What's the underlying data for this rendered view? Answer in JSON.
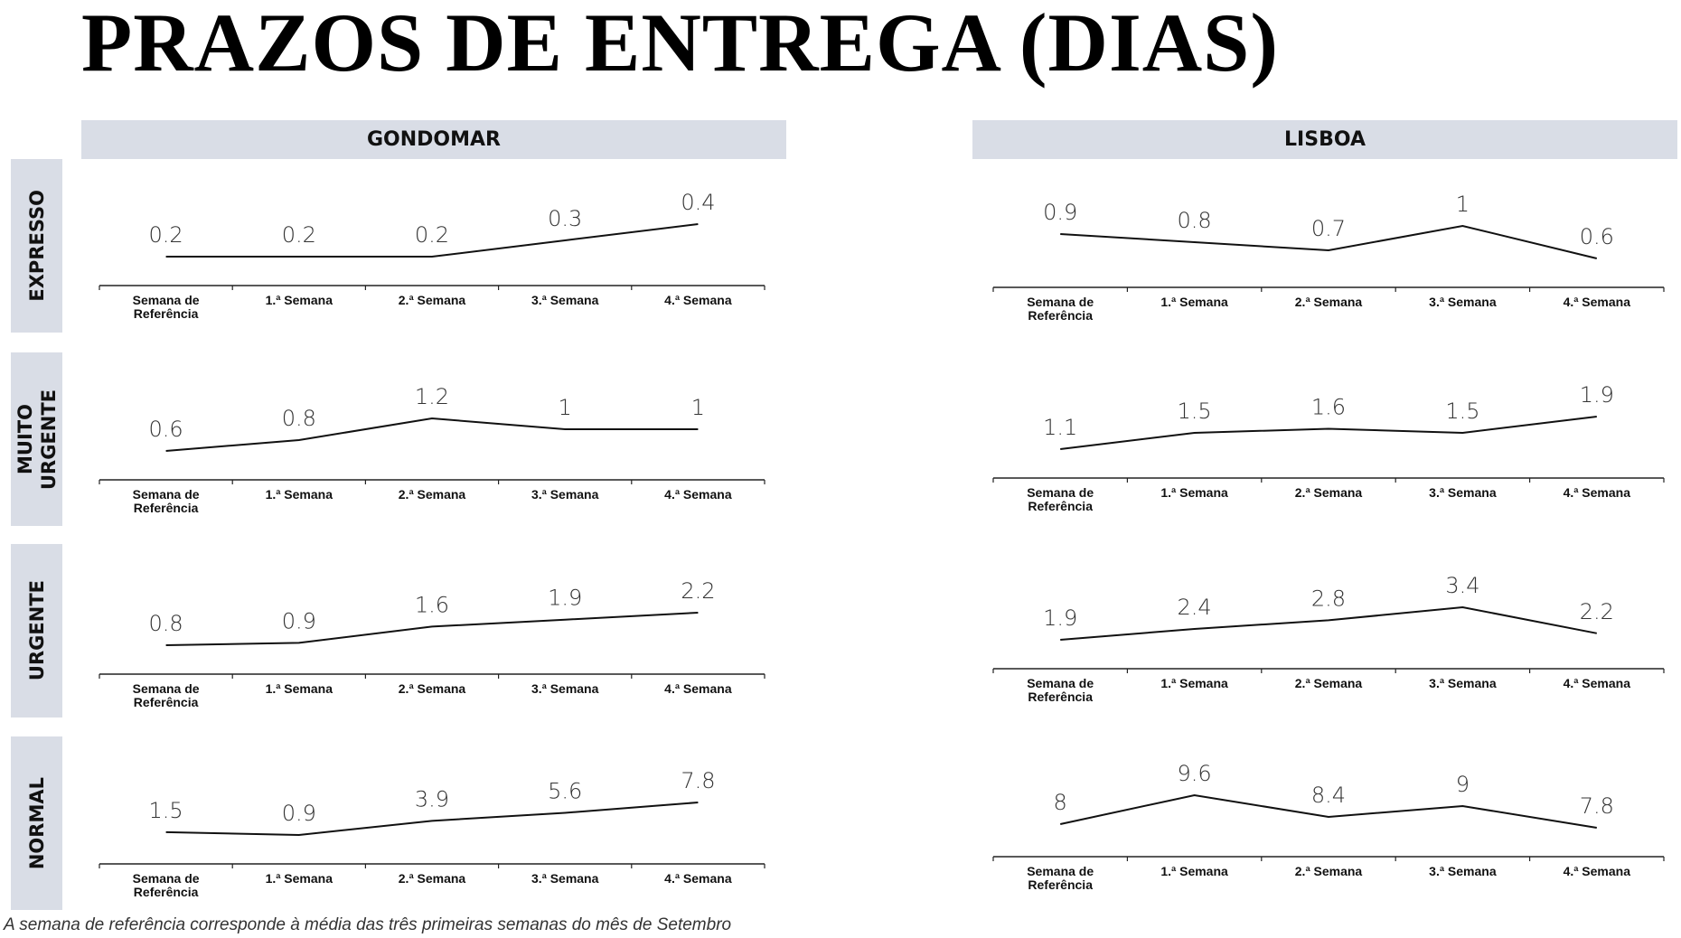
{
  "title": "PRAZOS DE ENTREGA (DIAS)",
  "columns": [
    "GONDOMAR",
    "LISBOA"
  ],
  "rows": [
    "EXPRESSO",
    "MUITO URGENTE",
    "URGENTE",
    "NORMAL"
  ],
  "note": "A semana de referência corresponde à média das três primeiras semanas do mês de Setembro",
  "chart_data": [
    {
      "type": "line",
      "color": "#111111",
      "categories": [
        "Semana de Referência",
        "1.ª Semana",
        "2.ª Semana",
        "3.ª Semana",
        "4.ª Semana"
      ],
      "values": [
        0.2,
        0.2,
        0.2,
        0.3,
        0.4
      ]
    },
    {
      "type": "line",
      "color": "#111111",
      "categories": [
        "Semana de Referência",
        "1.ª Semana",
        "2.ª Semana",
        "3.ª Semana",
        "4.ª Semana"
      ],
      "values": [
        0.6,
        0.8,
        1.2,
        1,
        1
      ]
    },
    {
      "type": "line",
      "color": "#111111",
      "categories": [
        "Semana de Referência",
        "1.ª Semana",
        "2.ª Semana",
        "3.ª Semana",
        "4.ª Semana"
      ],
      "values": [
        0.8,
        0.9,
        1.6,
        1.9,
        2.2
      ]
    },
    {
      "type": "line",
      "color": "#111111",
      "categories": [
        "Semana de Referência",
        "1.ª Semana",
        "2.ª Semana",
        "3.ª Semana",
        "4.ª Semana"
      ],
      "values": [
        1.5,
        0.9,
        3.9,
        5.6,
        7.8
      ]
    },
    {
      "type": "line",
      "color": "#111111",
      "categories": [
        "Semana de Referência",
        "1.ª Semana",
        "2.ª Semana",
        "3.ª Semana",
        "4.ª Semana"
      ],
      "values": [
        0.9,
        0.8,
        0.7,
        1,
        0.6
      ]
    },
    {
      "type": "line",
      "color": "#111111",
      "categories": [
        "Semana de Referência",
        "1.ª Semana",
        "2.ª Semana",
        "3.ª Semana",
        "4.ª Semana"
      ],
      "values": [
        1.1,
        1.5,
        1.6,
        1.5,
        1.9
      ]
    },
    {
      "type": "line",
      "color": "#111111",
      "categories": [
        "Semana de Referência",
        "1.ª Semana",
        "2.ª Semana",
        "3.ª Semana",
        "4.ª Semana"
      ],
      "values": [
        1.9,
        2.4,
        2.8,
        3.4,
        2.2
      ]
    },
    {
      "type": "line",
      "color": "#111111",
      "categories": [
        "Semana de Referência",
        "1.ª Semana",
        "2.ª Semana",
        "3.ª Semana",
        "4.ª Semana"
      ],
      "values": [
        8,
        9.6,
        8.4,
        9,
        7.8
      ]
    }
  ]
}
